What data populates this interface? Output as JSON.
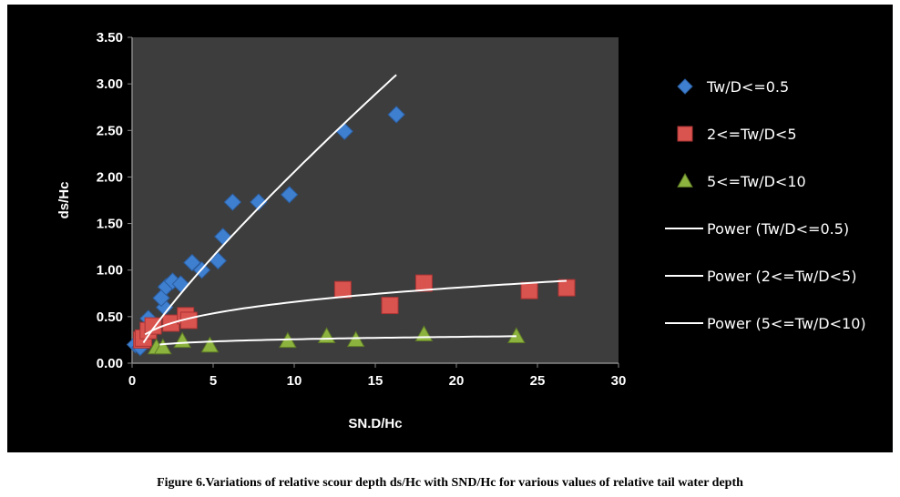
{
  "chart_data": {
    "type": "scatter",
    "title": "",
    "xlabel": "SN.D/Hc",
    "ylabel": "ds/Hc",
    "xlim": [
      0,
      30
    ],
    "ylim": [
      0,
      3.5
    ],
    "xticks": [
      "0",
      "5",
      "10",
      "15",
      "20",
      "25",
      "30"
    ],
    "yticks": [
      "0.00",
      "0.50",
      "1.00",
      "1.50",
      "2.00",
      "2.50",
      "3.00",
      "3.50"
    ],
    "grid": false,
    "legend_position": "right",
    "series": [
      {
        "name": "Tw/D<=0.5",
        "marker": "diamond",
        "color": "#3f7fd0",
        "points": [
          [
            0.2,
            0.2
          ],
          [
            0.5,
            0.17
          ],
          [
            1.0,
            0.48
          ],
          [
            2.0,
            0.6
          ],
          [
            1.8,
            0.7
          ],
          [
            2.1,
            0.82
          ],
          [
            2.5,
            0.88
          ],
          [
            3.0,
            0.85
          ],
          [
            3.7,
            1.08
          ],
          [
            4.3,
            1.0
          ],
          [
            5.3,
            1.1
          ],
          [
            5.6,
            1.36
          ],
          [
            6.2,
            1.73
          ],
          [
            7.8,
            1.73
          ],
          [
            9.7,
            1.81
          ],
          [
            13.1,
            2.49
          ],
          [
            16.3,
            2.67
          ]
        ]
      },
      {
        "name": "2<=Tw/D<5",
        "marker": "square",
        "color": "#d9534f",
        "points": [
          [
            0.6,
            0.25
          ],
          [
            0.7,
            0.27
          ],
          [
            1.0,
            0.35
          ],
          [
            1.3,
            0.4
          ],
          [
            2.4,
            0.43
          ],
          [
            3.3,
            0.51
          ],
          [
            3.5,
            0.46
          ],
          [
            13.0,
            0.79
          ],
          [
            15.9,
            0.62
          ],
          [
            18.0,
            0.86
          ],
          [
            24.5,
            0.78
          ],
          [
            26.8,
            0.81
          ]
        ]
      },
      {
        "name": "5<=Tw/D<10",
        "marker": "triangle",
        "color": "#8db33f",
        "points": [
          [
            1.5,
            0.17
          ],
          [
            1.9,
            0.17
          ],
          [
            3.1,
            0.24
          ],
          [
            4.8,
            0.19
          ],
          [
            9.6,
            0.24
          ],
          [
            12.0,
            0.29
          ],
          [
            13.8,
            0.25
          ],
          [
            18.0,
            0.31
          ],
          [
            23.7,
            0.29
          ]
        ]
      }
    ],
    "trendlines": [
      {
        "name": "Power (Tw/D<=0.5)",
        "a": 0.297,
        "b": 0.84,
        "xrange": [
          0.7,
          16.3
        ],
        "color": "#ffffff"
      },
      {
        "name": "Power (2<=Tw/D<5)",
        "a": 0.33,
        "b": 0.3,
        "xrange": [
          0.8,
          26.8
        ],
        "color": "#ffffff"
      },
      {
        "name": "Power (5<=Tw/D<10)",
        "a": 0.186,
        "b": 0.14,
        "xrange": [
          1.7,
          23.7
        ],
        "color": "#ffffff"
      }
    ]
  },
  "caption": "Figure 6.Variations of relative scour depth ds/Hc with SND/Hc for various values of relative tail water depth"
}
